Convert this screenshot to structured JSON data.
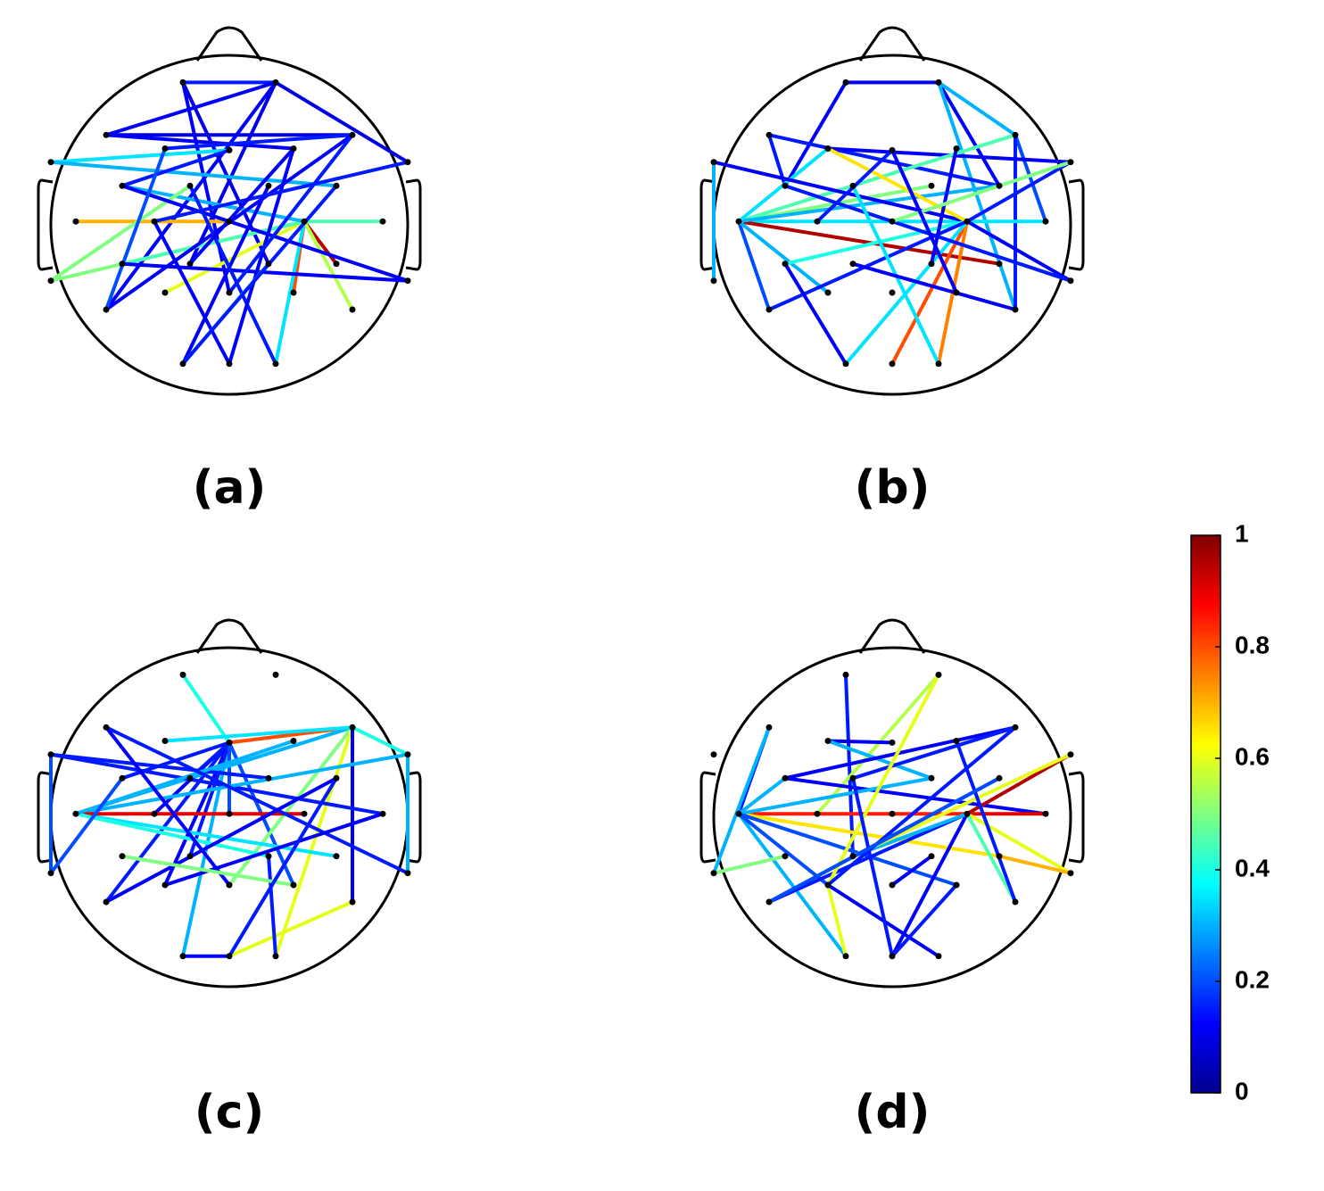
{
  "chart_data": [
    {
      "type": "network",
      "label": "(a)",
      "links": [
        [
          0,
          1
        ],
        [
          1,
          2
        ],
        [
          1,
          8
        ],
        [
          1,
          24
        ],
        [
          1,
          19
        ],
        [
          0,
          26
        ],
        [
          0,
          20
        ],
        [
          2,
          6
        ],
        [
          2,
          5
        ],
        [
          3,
          6
        ],
        [
          7,
          4
        ],
        [
          7,
          12
        ],
        [
          13,
          15
        ],
        [
          16,
          21
        ],
        [
          16,
          27
        ],
        [
          16,
          22
        ],
        [
          16,
          28
        ],
        [
          16,
          25
        ],
        [
          16,
          18
        ],
        [
          16,
          31
        ],
        [
          16,
          17
        ],
        [
          16,
          9
        ],
        [
          22,
          10
        ],
        [
          9,
          4
        ],
        [
          9,
          23
        ],
        [
          18,
          23
        ],
        [
          24,
          6
        ],
        [
          29,
          11
        ],
        [
          30,
          14
        ],
        [
          31,
          10
        ],
        [
          30,
          5
        ],
        [
          29,
          20
        ],
        [
          26,
          6
        ],
        [
          14,
          8
        ],
        [
          19,
          5
        ],
        [
          12,
          29
        ],
        [
          24,
          3
        ]
      ],
      "values": [
        0.15,
        0.12,
        0.1,
        0.12,
        0.1,
        0.12,
        0.1,
        0.1,
        0.12,
        0.15,
        0.35,
        0.3,
        0.7,
        0.95,
        0.8,
        0.5,
        0.55,
        0.6,
        0.45,
        0.35,
        0.45,
        0.3,
        0.5,
        0.15,
        0.12,
        0.12,
        0.12,
        0.12,
        0.12,
        0.15,
        0.12,
        0.3,
        0.15,
        0.15,
        0.12,
        0.15,
        0.2
      ]
    },
    {
      "type": "network",
      "label": "(b)",
      "links": [
        [
          0,
          1
        ],
        [
          0,
          9
        ],
        [
          1,
          12
        ],
        [
          1,
          28
        ],
        [
          1,
          6
        ],
        [
          2,
          12
        ],
        [
          2,
          9
        ],
        [
          6,
          17
        ],
        [
          6,
          28
        ],
        [
          8,
          3
        ],
        [
          7,
          22
        ],
        [
          13,
          17
        ],
        [
          13,
          21
        ],
        [
          13,
          11
        ],
        [
          13,
          6
        ],
        [
          13,
          12
        ],
        [
          13,
          3
        ],
        [
          13,
          24
        ],
        [
          13,
          25
        ],
        [
          16,
          30
        ],
        [
          16,
          31
        ],
        [
          16,
          29
        ],
        [
          16,
          7
        ],
        [
          16,
          8
        ],
        [
          16,
          18
        ],
        [
          16,
          3
        ],
        [
          16,
          23
        ],
        [
          16,
          24
        ],
        [
          9,
          23
        ],
        [
          10,
          31
        ],
        [
          18,
          29
        ],
        [
          20,
          5
        ],
        [
          8,
          15
        ],
        [
          19,
          28
        ],
        [
          4,
          27
        ],
        [
          14,
          4
        ]
      ],
      "values": [
        0.1,
        0.12,
        0.12,
        0.3,
        0.3,
        0.15,
        0.15,
        0.2,
        0.15,
        0.12,
        0.3,
        0.35,
        0.95,
        0.5,
        0.45,
        0.3,
        0.35,
        0.2,
        0.3,
        0.8,
        0.75,
        0.35,
        0.12,
        0.15,
        0.4,
        0.65,
        0.12,
        0.15,
        0.15,
        0.35,
        0.12,
        0.12,
        0.5,
        0.12,
        0.12,
        0.15
      ]
    },
    {
      "type": "network",
      "label": "(c)",
      "links": [
        [
          0,
          4
        ],
        [
          4,
          6
        ],
        [
          6,
          8
        ],
        [
          4,
          9
        ],
        [
          4,
          24
        ],
        [
          4,
          25
        ],
        [
          4,
          27
        ],
        [
          4,
          29
        ],
        [
          4,
          19
        ],
        [
          4,
          14
        ],
        [
          4,
          15
        ],
        [
          4,
          10
        ],
        [
          6,
          13
        ],
        [
          6,
          26
        ],
        [
          6,
          31
        ],
        [
          6,
          28
        ],
        [
          6,
          3
        ],
        [
          7,
          11
        ],
        [
          7,
          17
        ],
        [
          7,
          22
        ],
        [
          13,
          8
        ],
        [
          13,
          21
        ],
        [
          13,
          16
        ],
        [
          13,
          20
        ],
        [
          13,
          5
        ],
        [
          2,
          23
        ],
        [
          2,
          26
        ],
        [
          22,
          9
        ],
        [
          24,
          12
        ],
        [
          25,
          17
        ],
        [
          29,
          30
        ],
        [
          30,
          28
        ],
        [
          31,
          20
        ],
        [
          18,
          27
        ],
        [
          12,
          30
        ],
        [
          23,
          8
        ]
      ],
      "values": [
        0.4,
        0.8,
        0.4,
        0.15,
        0.15,
        0.12,
        0.2,
        0.3,
        0.15,
        0.12,
        0.2,
        0.15,
        0.3,
        0.5,
        0.6,
        0.12,
        0.35,
        0.15,
        0.15,
        0.2,
        0.3,
        0.35,
        0.9,
        0.4,
        0.3,
        0.15,
        0.12,
        0.2,
        0.12,
        0.12,
        0.12,
        0.6,
        0.15,
        0.5,
        0.15,
        0.3
      ]
    },
    {
      "type": "network",
      "label": "(d)",
      "links": [
        [
          0,
          19
        ],
        [
          1,
          14
        ],
        [
          2,
          13
        ],
        [
          2,
          22
        ],
        [
          3,
          4
        ],
        [
          3,
          11
        ],
        [
          9,
          6
        ],
        [
          9,
          17
        ],
        [
          10,
          6
        ],
        [
          13,
          16
        ],
        [
          13,
          21
        ],
        [
          13,
          29
        ],
        [
          13,
          25
        ],
        [
          13,
          11
        ],
        [
          13,
          27
        ],
        [
          13,
          9
        ],
        [
          16,
          8
        ],
        [
          16,
          17
        ],
        [
          16,
          23
        ],
        [
          16,
          28
        ],
        [
          16,
          24
        ],
        [
          16,
          30
        ],
        [
          16,
          19
        ],
        [
          8,
          19
        ],
        [
          21,
          23
        ],
        [
          22,
          18
        ],
        [
          25,
          1
        ],
        [
          25,
          29
        ],
        [
          25,
          6
        ],
        [
          25,
          31
        ],
        [
          24,
          12
        ],
        [
          26,
          20
        ],
        [
          27,
          30
        ],
        [
          30,
          10
        ],
        [
          28,
          5
        ],
        [
          12,
          24
        ]
      ],
      "values": [
        0.15,
        0.55,
        0.15,
        0.3,
        0.12,
        0.3,
        0.12,
        0.12,
        0.15,
        0.85,
        0.65,
        0.3,
        0.2,
        0.3,
        0.2,
        0.3,
        0.95,
        0.9,
        0.6,
        0.45,
        0.15,
        0.12,
        0.3,
        0.6,
        0.7,
        0.5,
        0.6,
        0.6,
        0.15,
        0.12,
        0.15,
        0.12,
        0.15,
        0.15,
        0.15,
        0.2
      ]
    }
  ],
  "colorbar": {
    "type": "colorbar",
    "colormap": "jet",
    "lim": [
      0,
      1
    ],
    "ticks": [
      0,
      0.2,
      0.4,
      0.6,
      0.8,
      1
    ]
  }
}
